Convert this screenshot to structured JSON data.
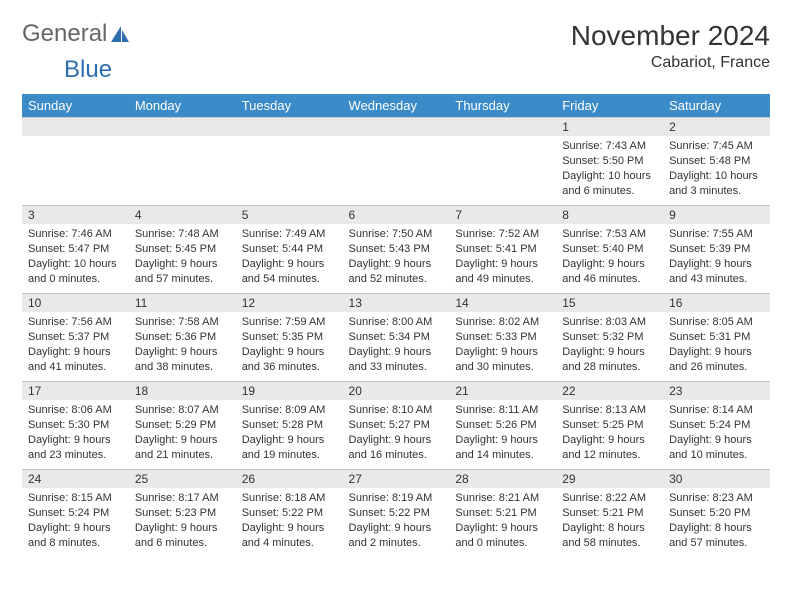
{
  "logo": {
    "text1": "General",
    "text2": "Blue"
  },
  "title": "November 2024",
  "location": "Cabariot, France",
  "colors": {
    "header_bg": "#3b8bc8",
    "header_fg": "#ffffff",
    "daynum_bg": "#e8e9eb",
    "accent": "#2f6fb0",
    "logo_gray": "#666666",
    "text": "#333333"
  },
  "weekdays": [
    "Sunday",
    "Monday",
    "Tuesday",
    "Wednesday",
    "Thursday",
    "Friday",
    "Saturday"
  ],
  "weeks": [
    [
      {
        "n": "",
        "lines": [
          "",
          "",
          ""
        ]
      },
      {
        "n": "",
        "lines": [
          "",
          "",
          ""
        ]
      },
      {
        "n": "",
        "lines": [
          "",
          "",
          ""
        ]
      },
      {
        "n": "",
        "lines": [
          "",
          "",
          ""
        ]
      },
      {
        "n": "",
        "lines": [
          "",
          "",
          ""
        ]
      },
      {
        "n": "1",
        "lines": [
          "Sunrise: 7:43 AM",
          "Sunset: 5:50 PM",
          "Daylight: 10 hours and 6 minutes."
        ]
      },
      {
        "n": "2",
        "lines": [
          "Sunrise: 7:45 AM",
          "Sunset: 5:48 PM",
          "Daylight: 10 hours and 3 minutes."
        ]
      }
    ],
    [
      {
        "n": "3",
        "lines": [
          "Sunrise: 7:46 AM",
          "Sunset: 5:47 PM",
          "Daylight: 10 hours and 0 minutes."
        ]
      },
      {
        "n": "4",
        "lines": [
          "Sunrise: 7:48 AM",
          "Sunset: 5:45 PM",
          "Daylight: 9 hours and 57 minutes."
        ]
      },
      {
        "n": "5",
        "lines": [
          "Sunrise: 7:49 AM",
          "Sunset: 5:44 PM",
          "Daylight: 9 hours and 54 minutes."
        ]
      },
      {
        "n": "6",
        "lines": [
          "Sunrise: 7:50 AM",
          "Sunset: 5:43 PM",
          "Daylight: 9 hours and 52 minutes."
        ]
      },
      {
        "n": "7",
        "lines": [
          "Sunrise: 7:52 AM",
          "Sunset: 5:41 PM",
          "Daylight: 9 hours and 49 minutes."
        ]
      },
      {
        "n": "8",
        "lines": [
          "Sunrise: 7:53 AM",
          "Sunset: 5:40 PM",
          "Daylight: 9 hours and 46 minutes."
        ]
      },
      {
        "n": "9",
        "lines": [
          "Sunrise: 7:55 AM",
          "Sunset: 5:39 PM",
          "Daylight: 9 hours and 43 minutes."
        ]
      }
    ],
    [
      {
        "n": "10",
        "lines": [
          "Sunrise: 7:56 AM",
          "Sunset: 5:37 PM",
          "Daylight: 9 hours and 41 minutes."
        ]
      },
      {
        "n": "11",
        "lines": [
          "Sunrise: 7:58 AM",
          "Sunset: 5:36 PM",
          "Daylight: 9 hours and 38 minutes."
        ]
      },
      {
        "n": "12",
        "lines": [
          "Sunrise: 7:59 AM",
          "Sunset: 5:35 PM",
          "Daylight: 9 hours and 36 minutes."
        ]
      },
      {
        "n": "13",
        "lines": [
          "Sunrise: 8:00 AM",
          "Sunset: 5:34 PM",
          "Daylight: 9 hours and 33 minutes."
        ]
      },
      {
        "n": "14",
        "lines": [
          "Sunrise: 8:02 AM",
          "Sunset: 5:33 PM",
          "Daylight: 9 hours and 30 minutes."
        ]
      },
      {
        "n": "15",
        "lines": [
          "Sunrise: 8:03 AM",
          "Sunset: 5:32 PM",
          "Daylight: 9 hours and 28 minutes."
        ]
      },
      {
        "n": "16",
        "lines": [
          "Sunrise: 8:05 AM",
          "Sunset: 5:31 PM",
          "Daylight: 9 hours and 26 minutes."
        ]
      }
    ],
    [
      {
        "n": "17",
        "lines": [
          "Sunrise: 8:06 AM",
          "Sunset: 5:30 PM",
          "Daylight: 9 hours and 23 minutes."
        ]
      },
      {
        "n": "18",
        "lines": [
          "Sunrise: 8:07 AM",
          "Sunset: 5:29 PM",
          "Daylight: 9 hours and 21 minutes."
        ]
      },
      {
        "n": "19",
        "lines": [
          "Sunrise: 8:09 AM",
          "Sunset: 5:28 PM",
          "Daylight: 9 hours and 19 minutes."
        ]
      },
      {
        "n": "20",
        "lines": [
          "Sunrise: 8:10 AM",
          "Sunset: 5:27 PM",
          "Daylight: 9 hours and 16 minutes."
        ]
      },
      {
        "n": "21",
        "lines": [
          "Sunrise: 8:11 AM",
          "Sunset: 5:26 PM",
          "Daylight: 9 hours and 14 minutes."
        ]
      },
      {
        "n": "22",
        "lines": [
          "Sunrise: 8:13 AM",
          "Sunset: 5:25 PM",
          "Daylight: 9 hours and 12 minutes."
        ]
      },
      {
        "n": "23",
        "lines": [
          "Sunrise: 8:14 AM",
          "Sunset: 5:24 PM",
          "Daylight: 9 hours and 10 minutes."
        ]
      }
    ],
    [
      {
        "n": "24",
        "lines": [
          "Sunrise: 8:15 AM",
          "Sunset: 5:24 PM",
          "Daylight: 9 hours and 8 minutes."
        ]
      },
      {
        "n": "25",
        "lines": [
          "Sunrise: 8:17 AM",
          "Sunset: 5:23 PM",
          "Daylight: 9 hours and 6 minutes."
        ]
      },
      {
        "n": "26",
        "lines": [
          "Sunrise: 8:18 AM",
          "Sunset: 5:22 PM",
          "Daylight: 9 hours and 4 minutes."
        ]
      },
      {
        "n": "27",
        "lines": [
          "Sunrise: 8:19 AM",
          "Sunset: 5:22 PM",
          "Daylight: 9 hours and 2 minutes."
        ]
      },
      {
        "n": "28",
        "lines": [
          "Sunrise: 8:21 AM",
          "Sunset: 5:21 PM",
          "Daylight: 9 hours and 0 minutes."
        ]
      },
      {
        "n": "29",
        "lines": [
          "Sunrise: 8:22 AM",
          "Sunset: 5:21 PM",
          "Daylight: 8 hours and 58 minutes."
        ]
      },
      {
        "n": "30",
        "lines": [
          "Sunrise: 8:23 AM",
          "Sunset: 5:20 PM",
          "Daylight: 8 hours and 57 minutes."
        ]
      }
    ]
  ]
}
